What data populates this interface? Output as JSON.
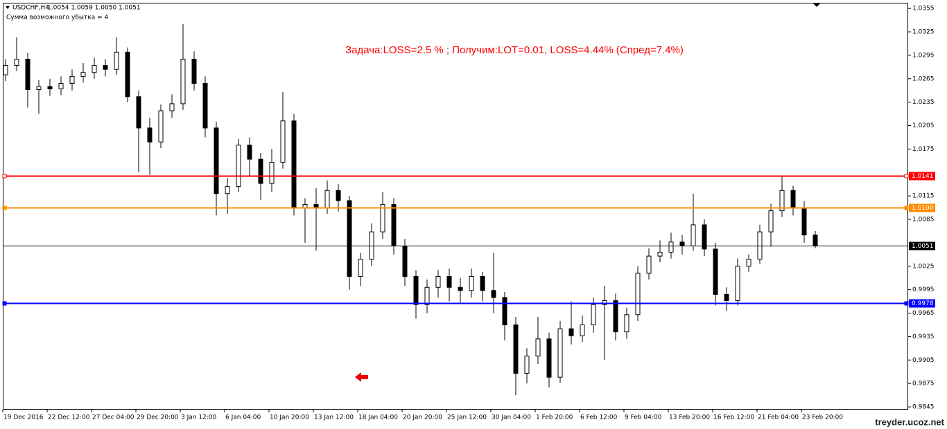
{
  "chart_data": {
    "type": "candlestick",
    "symbol": "USDCHF,H4",
    "header_ohlc": "1.0054 1.0059 1.0050 1.0051",
    "indicator_text": "Сумма возможного убытка = 4",
    "annotation": "Задача:LOSS=2.5 % ; Получим:LOT=0.01, LOSS=4.44% (Спред=7.4%)",
    "watermark": "treyder.ucoz.net",
    "grid": false,
    "bull_color": "#ffffff",
    "bear_color": "#000000",
    "xlim": [
      0,
      326.5
    ],
    "ylim": [
      0.98415,
      1.03622
    ],
    "xticks": [
      {
        "value": 0,
        "label": "19 Dec 2016"
      },
      {
        "value": 16,
        "label": "22 Dec 12:00"
      },
      {
        "value": 32,
        "label": "27 Dec 04:00"
      },
      {
        "value": 48,
        "label": "29 Dec 20:00"
      },
      {
        "value": 64,
        "label": "3 Jan 12:00"
      },
      {
        "value": 80,
        "label": "6 Jan 04:00"
      },
      {
        "value": 96,
        "label": "10 Jan 20:00"
      },
      {
        "value": 112,
        "label": "13 Jan 12:00"
      },
      {
        "value": 128,
        "label": "18 Jan 04:00"
      },
      {
        "value": 144,
        "label": "20 Jan 20:00"
      },
      {
        "value": 160,
        "label": "25 Jan 12:00"
      },
      {
        "value": 176,
        "label": "30 Jan 04:00"
      },
      {
        "value": 192,
        "label": "1 Feb 20:00"
      },
      {
        "value": 208,
        "label": "6 Feb 12:00"
      },
      {
        "value": 224,
        "label": "9 Feb 04:00"
      },
      {
        "value": 240,
        "label": "13 Feb 20:00"
      },
      {
        "value": 256,
        "label": "16 Feb 12:00"
      },
      {
        "value": 272,
        "label": "21 Feb 04:00"
      },
      {
        "value": 288,
        "label": "23 Feb 20:00"
      }
    ],
    "yticks": [
      1.0355,
      1.0325,
      1.0295,
      1.0265,
      1.0235,
      1.0205,
      1.0175,
      1.0115,
      1.0085,
      1.0025,
      0.9995,
      0.9965,
      0.9935,
      0.9905,
      0.9875,
      0.9845
    ],
    "levels": [
      {
        "value": 1.0141,
        "color": "#ff0000"
      },
      {
        "value": 1.01,
        "label": "1.0100",
        "color": "#ff8c00"
      },
      {
        "value": 1.0051,
        "color": "#000000"
      },
      {
        "value": 0.9978,
        "color": "#0000ff"
      }
    ],
    "x": [
      1,
      5,
      9,
      13,
      17,
      21,
      25,
      29,
      33,
      37,
      41,
      45,
      49,
      53,
      57,
      61,
      65,
      69,
      73,
      77,
      81,
      85,
      89,
      93,
      97,
      101,
      105,
      109,
      113,
      117,
      121,
      125,
      129,
      133,
      137,
      141,
      145,
      149,
      153,
      157,
      161,
      165,
      169,
      173,
      177,
      181,
      185,
      189,
      193,
      197,
      201,
      205,
      209,
      213,
      217,
      221,
      225,
      229,
      233,
      237,
      241,
      245,
      249,
      253,
      257,
      261,
      265,
      269,
      273,
      277,
      281,
      285,
      289,
      293
    ],
    "open": [
      1.027,
      1.0282,
      1.029,
      1.0251,
      1.0255,
      1.0252,
      1.0259,
      1.0268,
      1.0273,
      1.0282,
      1.0277,
      1.0299,
      1.0242,
      1.0202,
      1.0184,
      1.0224,
      1.0233,
      1.029,
      1.0259,
      1.0202,
      1.0118,
      1.0127,
      1.018,
      1.0162,
      1.0131,
      1.0158,
      1.0211,
      1.01,
      1.0104,
      1.01,
      1.0122,
      1.0109,
      1.0012,
      1.0034,
      1.0069,
      1.0104,
      1.0051,
      1.0012,
      0.9976,
      0.9998,
      1.0012,
      0.9998,
      0.9994,
      1.0012,
      0.9994,
      0.9985,
      0.995,
      0.9888,
      0.991,
      0.9932,
      0.9883,
      0.9945,
      0.9936,
      0.995,
      0.9976,
      0.9981,
      0.9941,
      0.9963,
      1.0016,
      1.0038,
      1.0043,
      1.0056,
      1.0051,
      1.0078,
      1.0047,
      0.9989,
      0.9981,
      1.0025,
      1.0034,
      1.0069,
      1.0096,
      1.0122,
      1.01,
      1.0065
    ],
    "high": [
      1.029,
      1.0318,
      1.0298,
      1.0263,
      1.0265,
      1.0268,
      1.0277,
      1.0285,
      1.0292,
      1.029,
      1.0318,
      1.0305,
      1.025,
      1.0215,
      1.0232,
      1.0245,
      1.0335,
      1.03,
      1.0268,
      1.021,
      1.0138,
      1.0188,
      1.019,
      1.017,
      1.0175,
      1.0248,
      1.022,
      1.0112,
      1.0125,
      1.0135,
      1.013,
      1.0115,
      1.0042,
      1.008,
      1.012,
      1.0112,
      1.006,
      1.002,
      1.0008,
      1.002,
      1.0022,
      1.001,
      1.0022,
      1.0018,
      1.0042,
      0.9992,
      0.996,
      0.992,
      0.996,
      0.994,
      0.9955,
      0.998,
      0.9962,
      0.9985,
      1.0,
      0.999,
      0.9972,
      1.0025,
      1.0048,
      1.0058,
      1.0068,
      1.0065,
      1.0118,
      1.0085,
      1.0055,
      0.9998,
      1.0035,
      1.004,
      1.0078,
      1.0105,
      1.014,
      1.0128,
      1.0108,
      1.007
    ],
    "low": [
      1.0262,
      1.0275,
      1.0228,
      1.022,
      1.0243,
      1.0244,
      1.025,
      1.026,
      1.0265,
      1.0268,
      1.027,
      1.0235,
      1.0145,
      1.0142,
      1.0176,
      1.0215,
      1.0225,
      1.025,
      1.019,
      1.009,
      1.0092,
      1.012,
      1.014,
      1.011,
      1.012,
      1.015,
      1.009,
      1.0055,
      1.0045,
      1.0092,
      1.0095,
      0.9995,
      1.0,
      1.0025,
      1.006,
      1.004,
      1.0,
      0.9958,
      0.9965,
      0.9985,
      0.998,
      0.9978,
      0.9985,
      0.998,
      0.9965,
      0.993,
      0.986,
      0.9875,
      0.99,
      0.987,
      0.9876,
      0.9925,
      0.9928,
      0.994,
      0.9905,
      0.993,
      0.9932,
      0.9955,
      1.0008,
      1.003,
      1.0035,
      1.004,
      1.0045,
      1.0038,
      0.9975,
      0.9968,
      0.9975,
      1.0018,
      1.0028,
      1.005,
      1.0088,
      1.009,
      1.0055,
      1.0048
    ],
    "close": [
      1.0282,
      1.029,
      1.0251,
      1.0255,
      1.0252,
      1.0259,
      1.0268,
      1.0273,
      1.0282,
      1.0277,
      1.0299,
      1.0242,
      1.0202,
      1.0184,
      1.0224,
      1.0233,
      1.029,
      1.0259,
      1.0202,
      1.0118,
      1.0127,
      1.018,
      1.0162,
      1.0131,
      1.0158,
      1.0211,
      1.01,
      1.0104,
      1.01,
      1.0122,
      1.0109,
      1.0012,
      1.0034,
      1.0069,
      1.0104,
      1.0051,
      1.0012,
      0.9976,
      0.9998,
      1.0012,
      0.9998,
      0.9994,
      1.0012,
      0.9994,
      0.9985,
      0.995,
      0.9888,
      0.991,
      0.9932,
      0.9883,
      0.9945,
      0.9936,
      0.995,
      0.9976,
      0.9981,
      0.9941,
      0.9963,
      1.0016,
      1.0038,
      1.0043,
      1.0056,
      1.0051,
      1.0078,
      1.0047,
      0.9989,
      0.9981,
      1.0025,
      1.0034,
      1.0069,
      1.0096,
      1.0122,
      1.01,
      1.0065,
      1.0051
    ]
  }
}
